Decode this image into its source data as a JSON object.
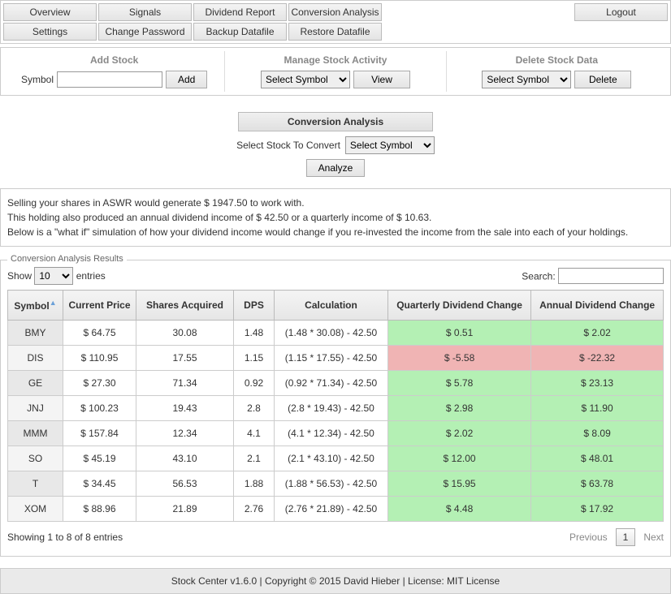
{
  "nav": {
    "row1": [
      "Overview",
      "Signals",
      "Dividend Report",
      "Conversion Analysis"
    ],
    "logout": "Logout",
    "row2": [
      "Settings",
      "Change Password",
      "Backup Datafile",
      "Restore Datafile"
    ]
  },
  "panels": {
    "add": {
      "title": "Add Stock",
      "label": "Symbol",
      "btn": "Add"
    },
    "manage": {
      "title": "Manage Stock Activity",
      "select": "Select Symbol",
      "btn": "View"
    },
    "delete": {
      "title": "Delete Stock Data",
      "select": "Select Symbol",
      "btn": "Delete"
    }
  },
  "convert": {
    "header": "Conversion Analysis",
    "label": "Select Stock To Convert",
    "select": "Select Symbol",
    "analyze": "Analyze"
  },
  "summary": {
    "l1": "Selling your shares in ASWR would generate $ 1947.50 to work with.",
    "l2": "This holding also produced an annual dividend income of $ 42.50 or a quarterly income of $ 10.63.",
    "l3": "Below is a \"what if\" simulation of how your dividend income would change if you re-invested the income from the sale into each of your holdings."
  },
  "results": {
    "legend": "Conversion Analysis Results",
    "show": "Show",
    "entries_word": "entries",
    "page_size": "10",
    "search": "Search:",
    "cols": [
      "Symbol",
      "Current Price",
      "Shares Acquired",
      "DPS",
      "Calculation",
      "Quarterly Dividend Change",
      "Annual Dividend Change"
    ],
    "rows": [
      {
        "sym": "BMY",
        "price": "$ 64.75",
        "shares": "30.08",
        "dps": "1.48",
        "calc": "(1.48 * 30.08) - 42.50",
        "q": "$ 0.51",
        "a": "$ 2.02",
        "dir": "pos"
      },
      {
        "sym": "DIS",
        "price": "$ 110.95",
        "shares": "17.55",
        "dps": "1.15",
        "calc": "(1.15 * 17.55) - 42.50",
        "q": "$ -5.58",
        "a": "$ -22.32",
        "dir": "neg"
      },
      {
        "sym": "GE",
        "price": "$ 27.30",
        "shares": "71.34",
        "dps": "0.92",
        "calc": "(0.92 * 71.34) - 42.50",
        "q": "$ 5.78",
        "a": "$ 23.13",
        "dir": "pos"
      },
      {
        "sym": "JNJ",
        "price": "$ 100.23",
        "shares": "19.43",
        "dps": "2.8",
        "calc": "(2.8 * 19.43) - 42.50",
        "q": "$ 2.98",
        "a": "$ 11.90",
        "dir": "pos"
      },
      {
        "sym": "MMM",
        "price": "$ 157.84",
        "shares": "12.34",
        "dps": "4.1",
        "calc": "(4.1 * 12.34) - 42.50",
        "q": "$ 2.02",
        "a": "$ 8.09",
        "dir": "pos"
      },
      {
        "sym": "SO",
        "price": "$ 45.19",
        "shares": "43.10",
        "dps": "2.1",
        "calc": "(2.1 * 43.10) - 42.50",
        "q": "$ 12.00",
        "a": "$ 48.01",
        "dir": "pos"
      },
      {
        "sym": "T",
        "price": "$ 34.45",
        "shares": "56.53",
        "dps": "1.88",
        "calc": "(1.88 * 56.53) - 42.50",
        "q": "$ 15.95",
        "a": "$ 63.78",
        "dir": "pos"
      },
      {
        "sym": "XOM",
        "price": "$ 88.96",
        "shares": "21.89",
        "dps": "2.76",
        "calc": "(2.76 * 21.89) - 42.50",
        "q": "$ 4.48",
        "a": "$ 17.92",
        "dir": "pos"
      }
    ],
    "info": "Showing 1 to 8 of 8 entries",
    "prev": "Previous",
    "page": "1",
    "next": "Next"
  },
  "footer": {
    "text": "Stock Center v1.6.0   |   Copyright © 2015 David Hieber   |   License: MIT License"
  },
  "colors": {
    "pos": "#b4f0b4",
    "neg": "#f0b4b4",
    "header_bg": "#e8e8e8",
    "border": "#cccccc"
  }
}
